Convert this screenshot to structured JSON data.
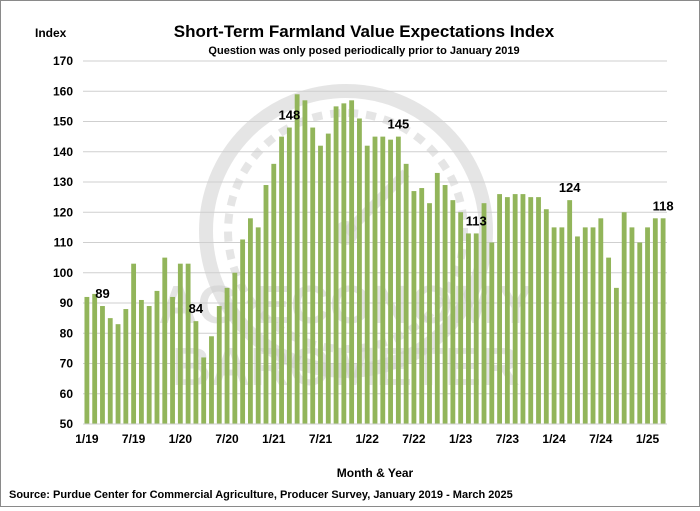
{
  "chart_data": {
    "type": "bar",
    "title": "Short-Term Farmland Value Expectations Index",
    "subtitle": "Question was only posed periodically prior to January 2019",
    "ylabel": "Index",
    "xlabel": "Month & Year",
    "source": "Source: Purdue Center for Commercial Agriculture, Producer Survey, January 2019 - March  2025",
    "watermark": [
      "AG ECONOMY",
      "BAROMETER"
    ],
    "ylim": [
      50,
      170
    ],
    "yticks": [
      50,
      60,
      70,
      80,
      90,
      100,
      110,
      120,
      130,
      140,
      150,
      160,
      170
    ],
    "xtick_labels": [
      "1/19",
      "7/19",
      "1/20",
      "7/20",
      "1/21",
      "7/21",
      "1/22",
      "7/22",
      "1/23",
      "7/23",
      "1/24",
      "7/24",
      "1/25"
    ],
    "xtick_indices": [
      0,
      6,
      12,
      18,
      24,
      30,
      36,
      42,
      48,
      54,
      60,
      66,
      72
    ],
    "grid": true,
    "legend": "none",
    "bar_color": "#92b55a",
    "values": [
      92,
      93,
      89,
      85,
      83,
      88,
      103,
      91,
      89,
      94,
      105,
      92,
      103,
      103,
      84,
      72,
      79,
      89,
      95,
      100,
      111,
      118,
      115,
      129,
      136,
      145,
      148,
      159,
      157,
      148,
      142,
      146,
      155,
      156,
      157,
      151,
      142,
      145,
      145,
      144,
      145,
      136,
      127,
      128,
      123,
      133,
      129,
      124,
      120,
      113,
      113,
      123,
      110,
      126,
      125,
      126,
      126,
      125,
      125,
      121,
      115,
      115,
      124,
      112,
      115,
      115,
      118,
      105,
      95,
      120,
      115,
      110,
      115,
      118,
      118
    ],
    "annotations": [
      {
        "index": 2,
        "label": "89"
      },
      {
        "index": 14,
        "label": "84"
      },
      {
        "index": 26,
        "label": "148"
      },
      {
        "index": 40,
        "label": "145"
      },
      {
        "index": 50,
        "label": "113"
      },
      {
        "index": 62,
        "label": "124"
      },
      {
        "index": 74,
        "label": "118"
      }
    ]
  }
}
